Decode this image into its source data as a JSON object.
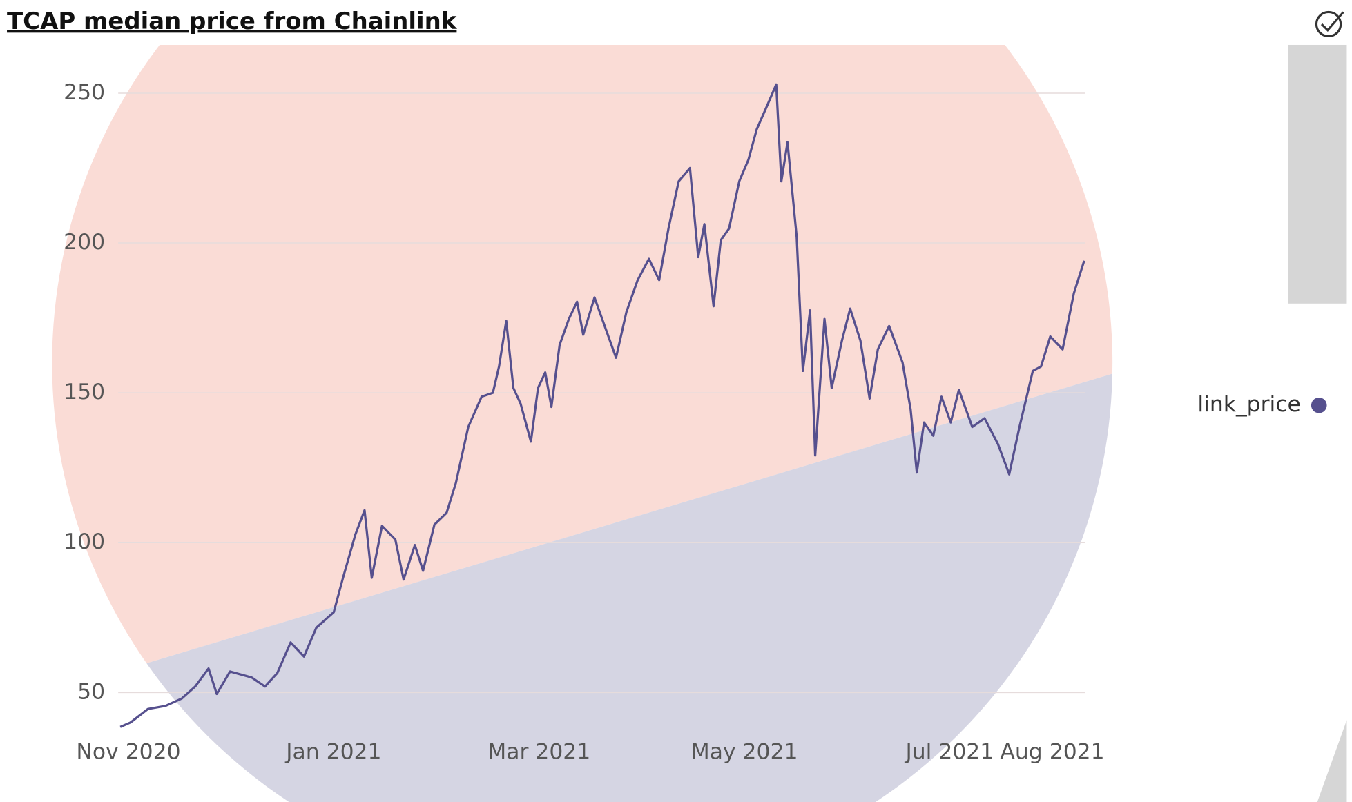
{
  "chart_data": {
    "type": "line",
    "title": "TCAP median price from Chainlink",
    "x": [
      -0.08,
      0.02,
      0.19,
      0.36,
      0.52,
      0.65,
      0.78,
      0.86,
      0.99,
      1.2,
      1.33,
      1.45,
      1.58,
      1.71,
      1.83,
      2.0,
      2.09,
      2.21,
      2.3,
      2.37,
      2.47,
      2.6,
      2.68,
      2.79,
      2.87,
      2.98,
      3.1,
      3.19,
      3.31,
      3.44,
      3.55,
      3.61,
      3.68,
      3.75,
      3.82,
      3.92,
      3.99,
      4.06,
      4.12,
      4.2,
      4.29,
      4.37,
      4.43,
      4.54,
      4.62,
      4.75,
      4.85,
      4.96,
      5.07,
      5.17,
      5.26,
      5.36,
      5.47,
      5.55,
      5.61,
      5.7,
      5.77,
      5.85,
      5.95,
      6.04,
      6.12,
      6.23,
      6.31,
      6.36,
      6.42,
      6.51,
      6.57,
      6.64,
      6.69,
      6.78,
      6.85,
      6.95,
      7.03,
      7.13,
      7.22,
      7.3,
      7.41,
      7.54,
      7.62,
      7.68,
      7.75,
      7.84,
      7.92,
      8.01,
      8.09,
      8.22,
      8.34,
      8.47,
      8.58,
      8.68,
      8.81,
      8.89,
      8.98,
      9.1,
      9.21,
      9.31
    ],
    "series": [
      {
        "name": "link_price",
        "color": "#56508e",
        "values": [
          38.5,
          40,
          44.5,
          45.5,
          48,
          52,
          58,
          49.5,
          57,
          55,
          52,
          56.5,
          66.7,
          62,
          71.6,
          76.8,
          88.3,
          102.7,
          110.8,
          88.3,
          105.6,
          101,
          87.7,
          99.2,
          90.6,
          106,
          110,
          120,
          138.6,
          148.7,
          150,
          158.8,
          174,
          151.6,
          146.4,
          133.7,
          151.6,
          156.8,
          145.3,
          166,
          174.6,
          180.4,
          169.4,
          181.8,
          174.1,
          161.7,
          176.9,
          187.6,
          194.7,
          187.6,
          204.8,
          220.6,
          225,
          195.3,
          206.3,
          178.9,
          200.9,
          204.8,
          220.6,
          227.8,
          237.9,
          246.5,
          252.9,
          220.6,
          233.6,
          201.9,
          157.3,
          177.5,
          129.1,
          174.6,
          151.6,
          167.4,
          178.1,
          167.4,
          148.1,
          164.5,
          172.3,
          160.2,
          144.4,
          123.4,
          140.1,
          135.7,
          148.7,
          140.1,
          151,
          138.6,
          141.5,
          132.9,
          122.8,
          138.6,
          157.3,
          158.8,
          168.8,
          164.5,
          183.2,
          194.1
        ]
      }
    ],
    "xlim": [
      -0.1,
      9.35
    ],
    "xticks": [
      {
        "value": 0,
        "label": "Nov 2020"
      },
      {
        "value": 2,
        "label": "Jan 2021"
      },
      {
        "value": 4,
        "label": "Mar 2021"
      },
      {
        "value": 6,
        "label": "May 2021"
      },
      {
        "value": 8,
        "label": "Jul 2021"
      },
      {
        "value": 9,
        "label": "Aug 2021"
      }
    ],
    "ylim": [
      38,
      262
    ],
    "yticks": [
      50,
      100,
      150,
      200,
      250
    ],
    "grid": true,
    "legend": "right"
  }
}
